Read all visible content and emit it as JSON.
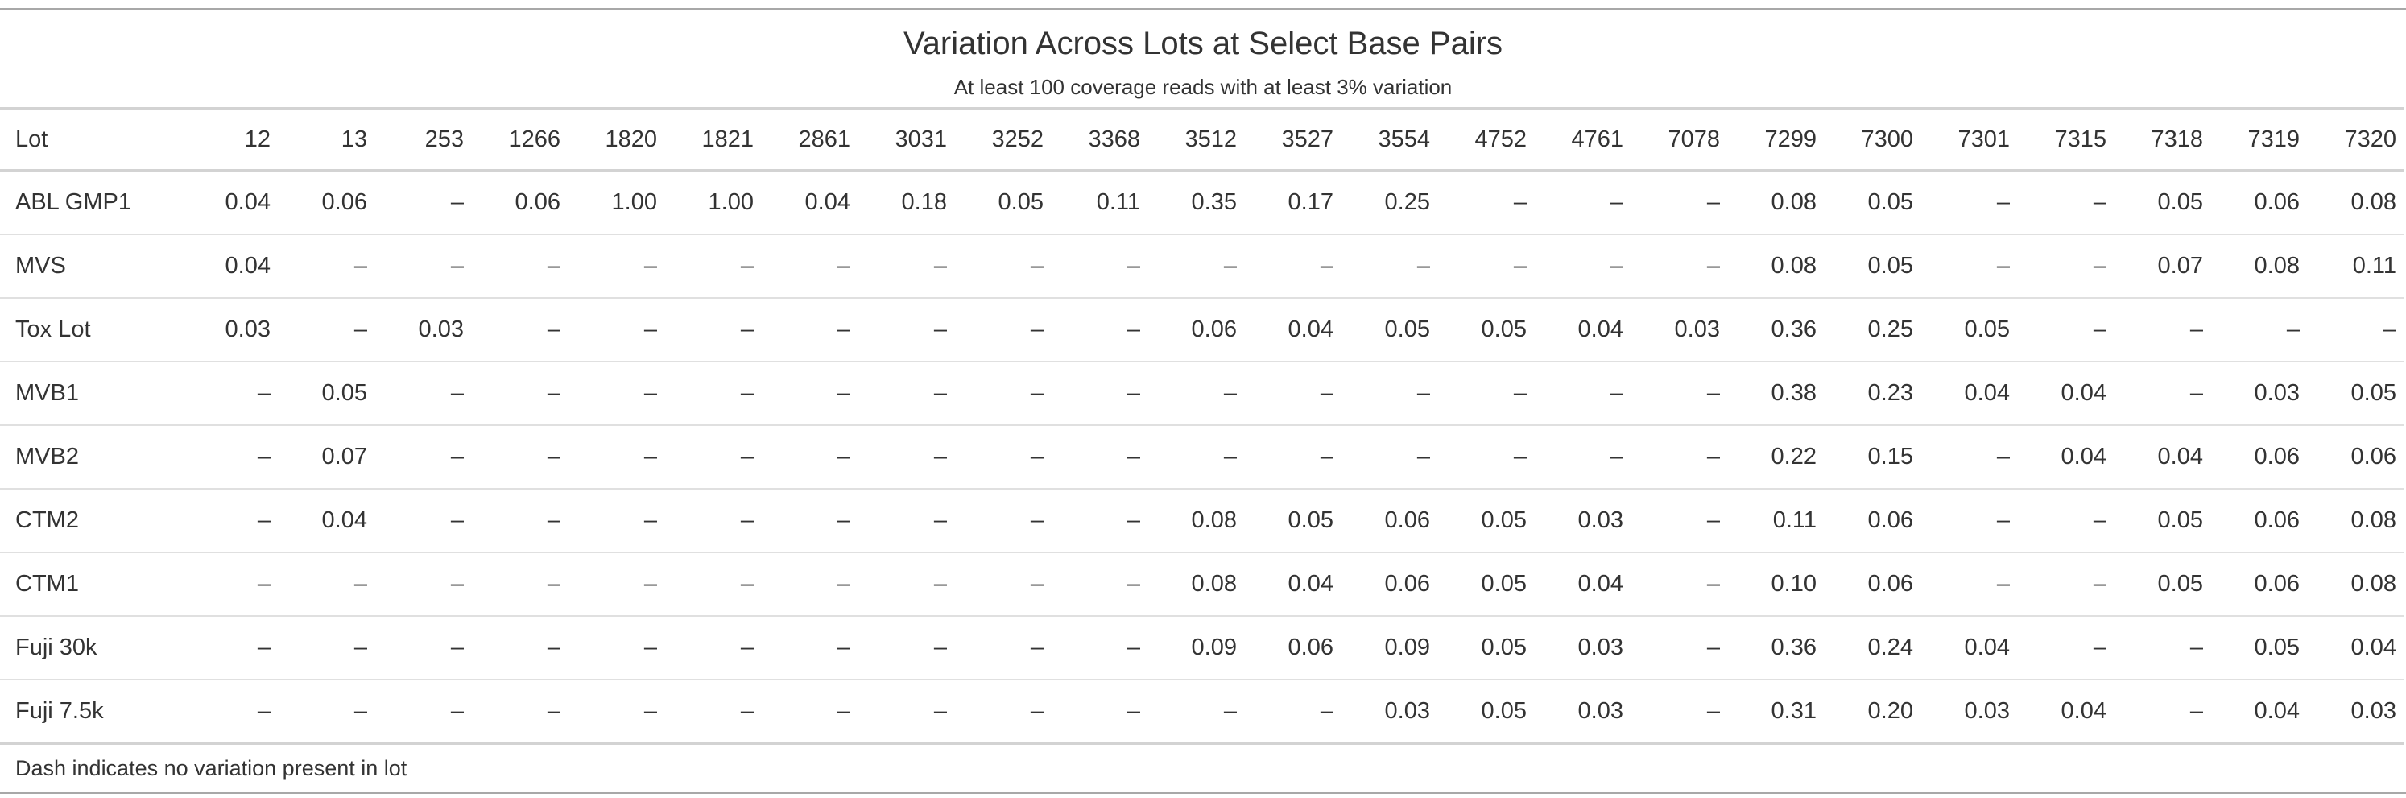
{
  "title": "Variation Across Lots at Select Base Pairs",
  "subtitle": "At least 100 coverage reads with at least 3% variation",
  "table": {
    "columns": [
      "Lot",
      "12",
      "13",
      "253",
      "1266",
      "1820",
      "1821",
      "2861",
      "3031",
      "3252",
      "3368",
      "3512",
      "3527",
      "3554",
      "4752",
      "4761",
      "7078",
      "7299",
      "7300",
      "7301",
      "7315",
      "7318",
      "7319",
      "7320"
    ],
    "rows": [
      [
        "ABL GMP1",
        "0.04",
        "0.06",
        "–",
        "0.06",
        "1.00",
        "1.00",
        "0.04",
        "0.18",
        "0.05",
        "0.11",
        "0.35",
        "0.17",
        "0.25",
        "–",
        "–",
        "–",
        "0.08",
        "0.05",
        "–",
        "–",
        "0.05",
        "0.06",
        "0.08"
      ],
      [
        "MVS",
        "0.04",
        "–",
        "–",
        "–",
        "–",
        "–",
        "–",
        "–",
        "–",
        "–",
        "–",
        "–",
        "–",
        "–",
        "–",
        "–",
        "0.08",
        "0.05",
        "–",
        "–",
        "0.07",
        "0.08",
        "0.11"
      ],
      [
        "Tox Lot",
        "0.03",
        "–",
        "0.03",
        "–",
        "–",
        "–",
        "–",
        "–",
        "–",
        "–",
        "0.06",
        "0.04",
        "0.05",
        "0.05",
        "0.04",
        "0.03",
        "0.36",
        "0.25",
        "0.05",
        "–",
        "–",
        "–",
        "–"
      ],
      [
        "MVB1",
        "–",
        "0.05",
        "–",
        "–",
        "–",
        "–",
        "–",
        "–",
        "–",
        "–",
        "–",
        "–",
        "–",
        "–",
        "–",
        "–",
        "0.38",
        "0.23",
        "0.04",
        "0.04",
        "–",
        "0.03",
        "0.05"
      ],
      [
        "MVB2",
        "–",
        "0.07",
        "–",
        "–",
        "–",
        "–",
        "–",
        "–",
        "–",
        "–",
        "–",
        "–",
        "–",
        "–",
        "–",
        "–",
        "0.22",
        "0.15",
        "–",
        "0.04",
        "0.04",
        "0.06",
        "0.06"
      ],
      [
        "CTM2",
        "–",
        "0.04",
        "–",
        "–",
        "–",
        "–",
        "–",
        "–",
        "–",
        "–",
        "0.08",
        "0.05",
        "0.06",
        "0.05",
        "0.03",
        "–",
        "0.11",
        "0.06",
        "–",
        "–",
        "0.05",
        "0.06",
        "0.08"
      ],
      [
        "CTM1",
        "–",
        "–",
        "–",
        "–",
        "–",
        "–",
        "–",
        "–",
        "–",
        "–",
        "0.08",
        "0.04",
        "0.06",
        "0.05",
        "0.04",
        "–",
        "0.10",
        "0.06",
        "–",
        "–",
        "0.05",
        "0.06",
        "0.08"
      ],
      [
        "Fuji 30k",
        "–",
        "–",
        "–",
        "–",
        "–",
        "–",
        "–",
        "–",
        "–",
        "–",
        "0.09",
        "0.06",
        "0.09",
        "0.05",
        "0.03",
        "–",
        "0.36",
        "0.24",
        "0.04",
        "–",
        "–",
        "0.05",
        "0.04"
      ],
      [
        "Fuji 7.5k",
        "–",
        "–",
        "–",
        "–",
        "–",
        "–",
        "–",
        "–",
        "–",
        "–",
        "–",
        "–",
        "0.03",
        "0.05",
        "0.03",
        "–",
        "0.31",
        "0.20",
        "0.03",
        "0.04",
        "–",
        "0.04",
        "0.03"
      ]
    ],
    "footnote": "Dash indicates no variation present in lot"
  }
}
